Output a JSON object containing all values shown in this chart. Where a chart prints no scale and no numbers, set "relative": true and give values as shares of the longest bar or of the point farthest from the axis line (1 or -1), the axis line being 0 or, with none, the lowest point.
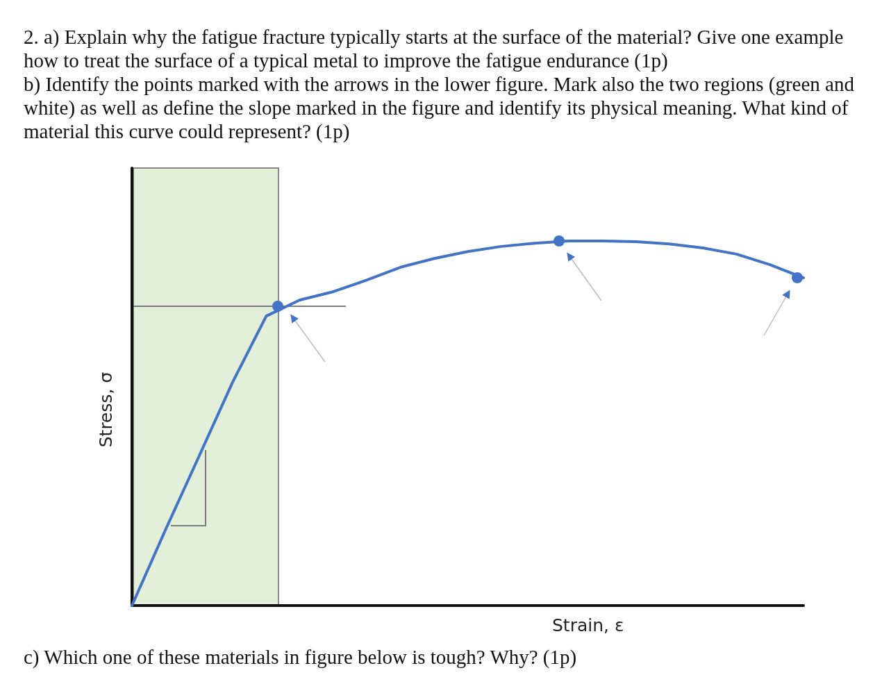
{
  "chart_data": {
    "type": "line",
    "relative": true,
    "title": "2. a) Explain why the fatigue fracture typically starts at the surface of the material? Give one example how to treat the surface of a typical metal to improve the fatigue endurance (1p)",
    "subtitle": "b) Identify the points marked with the arrows in the lower figure. Mark also the two regions (green and white) as well as define the slope marked in the figure and identify its physical meaning. What kind of material this curve could represent? (1p)",
    "annotations": [
      "c) Which one of these materials in figure below is tough? Why? (1p)"
    ],
    "xlabel": "Strain, ε",
    "ylabel": "Stress, σ",
    "categories": [
      null,
      null,
      null,
      null,
      null,
      null,
      null,
      null,
      null,
      null,
      null,
      null,
      null,
      null,
      null,
      null,
      null,
      null,
      null,
      null,
      null
    ],
    "series": [
      {
        "color": "#4472c4",
        "values": [
          0,
          0.208,
          0.41,
          0.613,
          0.794,
          0.838,
          0.861,
          0.893,
          0.928,
          0.952,
          0.971,
          0.985,
          0.994,
          1,
          1,
          0.998,
          0.992,
          0.981,
          0.964,
          0.935,
          0.899
        ]
      }
    ]
  }
}
